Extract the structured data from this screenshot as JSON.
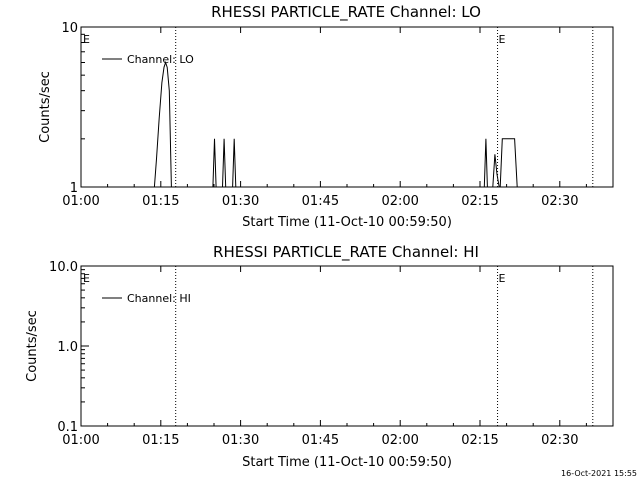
{
  "stamp": "16-Oct-2021 15:55",
  "chart_data": [
    {
      "type": "line",
      "title": "RHESSI PARTICLE_RATE Channel: LO",
      "xlabel": "Start Time (11-Oct-10 00:59:50)",
      "ylabel": "Counts/sec",
      "yscale": "log",
      "ylim": [
        1,
        10
      ],
      "ytick_labels": [
        "1",
        "10"
      ],
      "ytick_values": [
        1,
        10
      ],
      "xlim_min": [
        0,
        100
      ],
      "xtick_labels": [
        "01:00",
        "01:15",
        "01:30",
        "01:45",
        "02:00",
        "02:15",
        "02:30"
      ],
      "xtick_values": [
        0,
        15,
        30,
        45,
        60,
        75,
        90
      ],
      "legend": [
        "Channel: LO"
      ],
      "legend_placement": "top-left",
      "event_marker_label": "E",
      "event_lines_min": [
        -0.2,
        17.8,
        78.3,
        96.2
      ],
      "event_labels_at_min": [
        -0.2,
        78.3
      ],
      "series": [
        {
          "name": "Channel: LO",
          "points": [
            [
              13.8,
              1
            ],
            [
              14.2,
              1.5
            ],
            [
              14.7,
              2.7
            ],
            [
              15.2,
              4.5
            ],
            [
              15.6,
              5.6
            ],
            [
              15.9,
              6
            ],
            [
              16.2,
              5.6
            ],
            [
              16.6,
              4
            ],
            [
              17.0,
              1
            ],
            [
              24.8,
              1
            ],
            [
              25.1,
              2
            ],
            [
              25.4,
              1
            ],
            [
              26.6,
              1
            ],
            [
              26.9,
              2
            ],
            [
              27.2,
              1
            ],
            [
              28.5,
              1
            ],
            [
              28.8,
              2
            ],
            [
              29.1,
              1
            ],
            [
              75.8,
              1
            ],
            [
              76.1,
              2
            ],
            [
              76.4,
              1
            ],
            [
              77.4,
              1
            ],
            [
              77.8,
              1.6
            ],
            [
              78.2,
              1.2
            ],
            [
              78.6,
              1
            ],
            [
              78.8,
              1
            ],
            [
              79.2,
              2
            ],
            [
              81.5,
              2
            ],
            [
              82.0,
              1
            ]
          ]
        }
      ]
    },
    {
      "type": "line",
      "title": "RHESSI PARTICLE_RATE Channel: HI",
      "xlabel": "Start Time (11-Oct-10 00:59:50)",
      "ylabel": "Counts/sec",
      "yscale": "log",
      "ylim": [
        0.1,
        10
      ],
      "ytick_labels": [
        "0.1",
        "1.0",
        "10.0"
      ],
      "ytick_values": [
        0.1,
        1,
        10
      ],
      "xlim_min": [
        0,
        100
      ],
      "xtick_labels": [
        "01:00",
        "01:15",
        "01:30",
        "01:45",
        "02:00",
        "02:15",
        "02:30"
      ],
      "xtick_values": [
        0,
        15,
        30,
        45,
        60,
        75,
        90
      ],
      "legend": [
        "Channel: HI"
      ],
      "legend_placement": "top-left",
      "event_marker_label": "E",
      "event_lines_min": [
        -0.2,
        17.8,
        78.3,
        96.2
      ],
      "event_labels_at_min": [
        -0.2,
        78.3
      ],
      "series": [
        {
          "name": "Channel: HI",
          "points": []
        }
      ]
    }
  ]
}
